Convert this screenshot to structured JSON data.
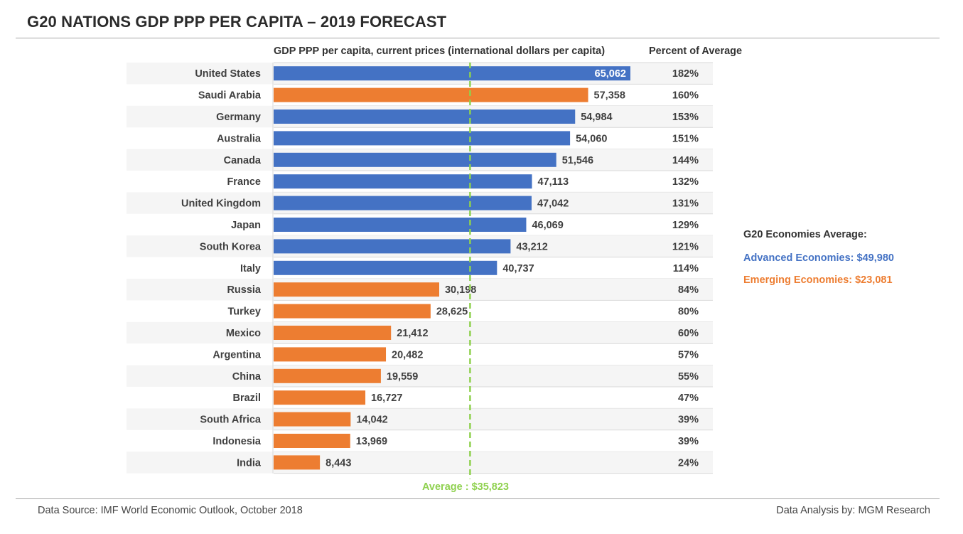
{
  "title": "G20 NATIONS GDP PPP PER CAPITA – 2019 FORECAST",
  "footer": {
    "source": "Data Source: IMF World Economic Outlook, October 2018",
    "analysis": "Data Analysis by: MGM Research"
  },
  "legend": {
    "heading": "G20 Economies Average:",
    "advanced": "Advanced Economies: $49,980",
    "emerging": "Emerging Economies: $23,081"
  },
  "colors": {
    "advanced": "#4472c4",
    "emerging": "#ed7d31",
    "average_line": "#8fd14f",
    "row_band": "#f5f5f5",
    "gridline": "#d9d9d9"
  },
  "chart_data": {
    "type": "bar",
    "orientation": "horizontal",
    "title": "G20 NATIONS GDP PPP PER CAPITA – 2019 FORECAST",
    "xlabel": "GDP PPP per capita, current prices (international dollars per capita)",
    "percent_column_header": "Percent of Average",
    "average": {
      "value": 35823,
      "label": "Average : $35,823"
    },
    "xlim": [
      0,
      65062
    ],
    "grid": false,
    "categories": [
      "United States",
      "Saudi Arabia",
      "Germany",
      "Australia",
      "Canada",
      "France",
      "United Kingdom",
      "Japan",
      "South Korea",
      "Italy",
      "Russia",
      "Turkey",
      "Mexico",
      "Argentina",
      "China",
      "Brazil",
      "South Africa",
      "Indonesia",
      "India"
    ],
    "values": [
      65062,
      57358,
      54984,
      54060,
      51546,
      47113,
      47042,
      46069,
      43212,
      40737,
      30198,
      28625,
      21412,
      20482,
      19559,
      16727,
      14042,
      13969,
      8443
    ],
    "value_labels": [
      "65,062",
      "57,358",
      "54,984",
      "54,060",
      "51,546",
      "47,113",
      "47,042",
      "46,069",
      "43,212",
      "40,737",
      "30,198",
      "28,625",
      "21,412",
      "20,482",
      "19,559",
      "16,727",
      "14,042",
      "13,969",
      "8,443"
    ],
    "groups": [
      "advanced",
      "emerging",
      "advanced",
      "advanced",
      "advanced",
      "advanced",
      "advanced",
      "advanced",
      "advanced",
      "advanced",
      "emerging",
      "emerging",
      "emerging",
      "emerging",
      "emerging",
      "emerging",
      "emerging",
      "emerging",
      "emerging"
    ],
    "percent_of_average": [
      "182%",
      "160%",
      "153%",
      "151%",
      "144%",
      "132%",
      "131%",
      "129%",
      "121%",
      "114%",
      "84%",
      "80%",
      "60%",
      "57%",
      "55%",
      "47%",
      "39%",
      "39%",
      "24%"
    ]
  }
}
